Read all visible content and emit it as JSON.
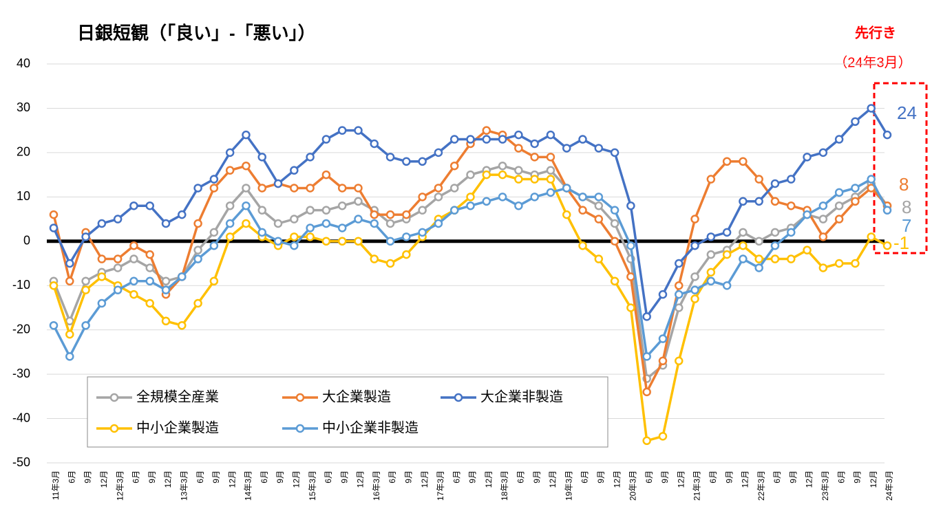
{
  "chart_data": {
    "type": "line",
    "title": "日銀短観（「良い」-「悪い」）",
    "annotation": {
      "title": "先行き",
      "subtitle": "（24年3月）"
    },
    "categories": [
      "11年3月",
      "6月",
      "9月",
      "12月",
      "12年3月",
      "6月",
      "9月",
      "12月",
      "13年3月",
      "6月",
      "9月",
      "12月",
      "14年3月",
      "6月",
      "9月",
      "12月",
      "15年3月",
      "6月",
      "9月",
      "12月",
      "16年3月",
      "6月",
      "9月",
      "12月",
      "17年3月",
      "6月",
      "9月",
      "12月",
      "18年3月",
      "6月",
      "9月",
      "12月",
      "19年3月",
      "6月",
      "9月",
      "12月",
      "20年3月",
      "6月",
      "9月",
      "12月",
      "21年3月",
      "6月",
      "9月",
      "12月",
      "22年3月",
      "6月",
      "9月",
      "12月",
      "23年3月",
      "6月",
      "9月",
      "12月",
      "24年3月"
    ],
    "ylim": [
      -50,
      40
    ],
    "yticks": [
      -50,
      -40,
      -30,
      -20,
      -10,
      0,
      10,
      20,
      30,
      40
    ],
    "grid": true,
    "series": [
      {
        "name": "全規模全産業",
        "color": "#a5a5a5",
        "end_label": "8",
        "values": [
          -9,
          -18,
          -9,
          -7,
          -6,
          -4,
          -6,
          -9,
          -8,
          -2,
          2,
          8,
          12,
          7,
          4,
          5,
          7,
          7,
          8,
          9,
          7,
          4,
          5,
          7,
          10,
          12,
          15,
          16,
          17,
          16,
          15,
          16,
          12,
          10,
          8,
          4,
          -4,
          -31,
          -28,
          -15,
          -8,
          -3,
          -2,
          2,
          0,
          2,
          3,
          6,
          5,
          8,
          10,
          13,
          8
        ]
      },
      {
        "name": "大企業製造",
        "color": "#ed7d31",
        "end_label": "8",
        "values": [
          6,
          -9,
          2,
          -4,
          -4,
          -1,
          -3,
          -12,
          -8,
          4,
          12,
          16,
          17,
          12,
          13,
          12,
          12,
          15,
          12,
          12,
          6,
          6,
          6,
          10,
          12,
          17,
          22,
          25,
          24,
          21,
          19,
          19,
          12,
          7,
          5,
          0,
          -8,
          -34,
          -27,
          -10,
          5,
          14,
          18,
          18,
          14,
          9,
          8,
          7,
          1,
          5,
          9,
          12,
          8
        ]
      },
      {
        "name": "大企業非製造",
        "color": "#4472c4",
        "end_label": "24",
        "values": [
          3,
          -5,
          1,
          4,
          5,
          8,
          8,
          4,
          6,
          12,
          14,
          20,
          24,
          19,
          13,
          16,
          19,
          23,
          25,
          25,
          22,
          19,
          18,
          18,
          20,
          23,
          23,
          23,
          23,
          24,
          22,
          24,
          21,
          23,
          21,
          20,
          8,
          -17,
          -12,
          -5,
          -1,
          1,
          2,
          9,
          9,
          13,
          14,
          19,
          20,
          23,
          27,
          30,
          24
        ]
      },
      {
        "name": "中小企業製造",
        "color": "#ffc000",
        "end_label": "-1",
        "values": [
          -10,
          -21,
          -11,
          -8,
          -10,
          -12,
          -14,
          -18,
          -19,
          -14,
          -9,
          1,
          4,
          1,
          -1,
          1,
          1,
          0,
          0,
          0,
          -4,
          -5,
          -3,
          1,
          5,
          7,
          10,
          15,
          15,
          14,
          14,
          14,
          6,
          -1,
          -4,
          -9,
          -15,
          -45,
          -44,
          -27,
          -13,
          -7,
          -3,
          -1,
          -4,
          -4,
          -4,
          -2,
          -6,
          -5,
          -5,
          1,
          -1
        ]
      },
      {
        "name": "中小企業非製造",
        "color": "#5b9bd5",
        "end_label": "7",
        "values": [
          -19,
          -26,
          -19,
          -14,
          -11,
          -9,
          -9,
          -11,
          -8,
          -4,
          -1,
          4,
          8,
          2,
          0,
          -1,
          3,
          4,
          3,
          5,
          4,
          0,
          1,
          2,
          4,
          7,
          8,
          9,
          10,
          8,
          10,
          11,
          12,
          10,
          10,
          7,
          -1,
          -26,
          -22,
          -12,
          -11,
          -9,
          -10,
          -4,
          -6,
          -1,
          2,
          6,
          8,
          11,
          12,
          14,
          7
        ]
      }
    ]
  }
}
